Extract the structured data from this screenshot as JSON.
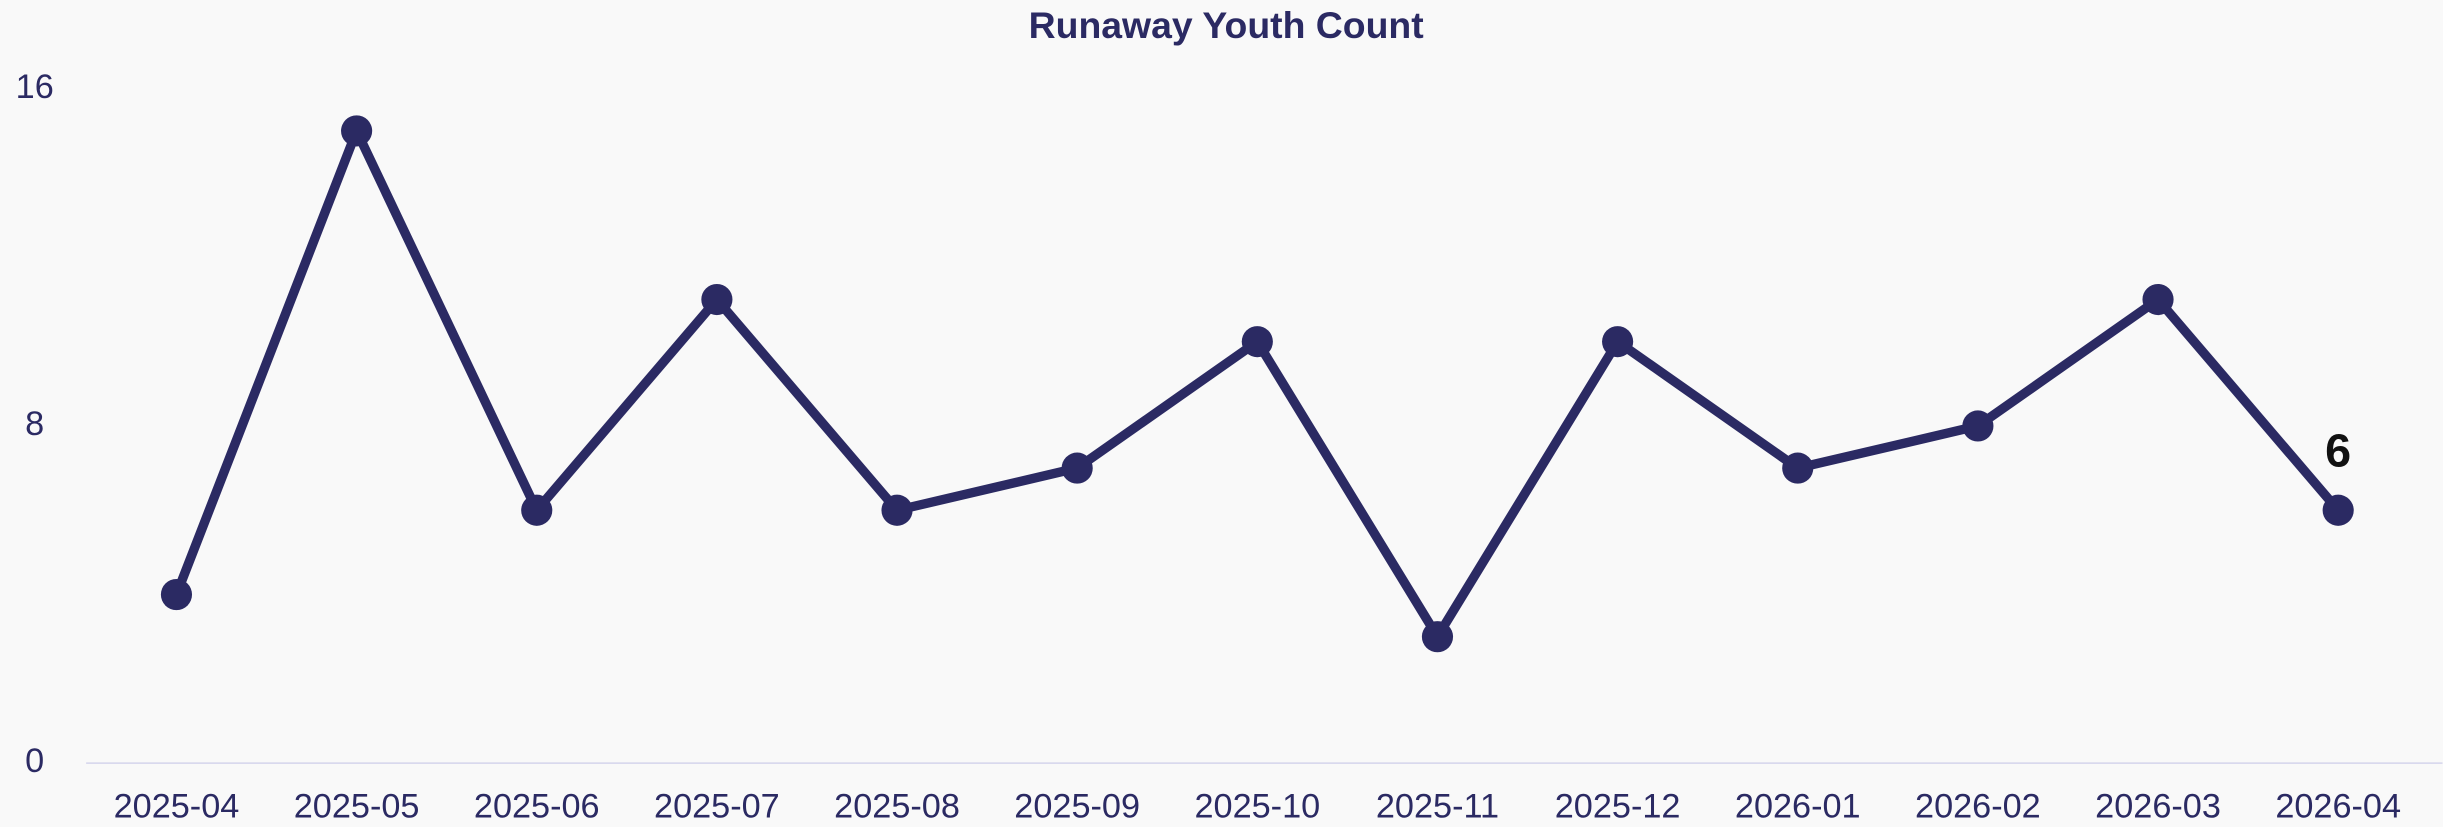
{
  "chart_data": {
    "type": "line",
    "title": "Runaway Youth Count",
    "categories": [
      "2025-04",
      "2025-05",
      "2025-06",
      "2025-07",
      "2025-08",
      "2025-09",
      "2025-10",
      "2025-11",
      "2025-12",
      "2026-01",
      "2026-02",
      "2026-03",
      "2026-04"
    ],
    "series": [
      {
        "name": "Runaway Youth Count",
        "color": "#2b2a63",
        "values": [
          4,
          15,
          6,
          11,
          6,
          7,
          10,
          3,
          10,
          7,
          8,
          11,
          6
        ]
      }
    ],
    "ylim": [
      0,
      16
    ],
    "yticks": [
      0,
      8,
      16
    ],
    "grid": false
  }
}
